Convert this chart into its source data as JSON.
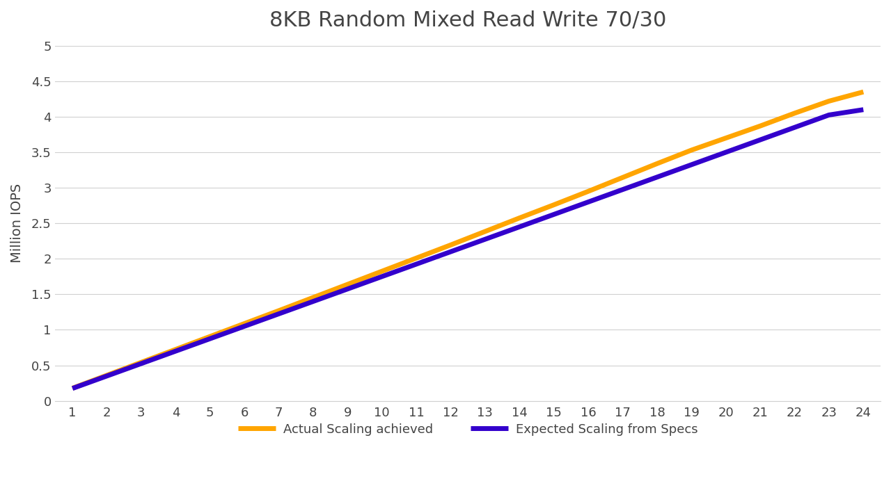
{
  "title": "8KB Random Mixed Read Write 70/30",
  "xlabel": "",
  "ylabel": "Million IOPS",
  "x_values": [
    1,
    2,
    3,
    4,
    5,
    6,
    7,
    8,
    9,
    10,
    11,
    12,
    13,
    14,
    15,
    16,
    17,
    18,
    19,
    20,
    21,
    22,
    23,
    24
  ],
  "expected_values": [
    0.175,
    0.35,
    0.525,
    0.7,
    0.875,
    1.05,
    1.225,
    1.4,
    1.575,
    1.75,
    1.925,
    2.1,
    2.275,
    2.45,
    2.625,
    2.8,
    2.975,
    3.15,
    3.325,
    3.5,
    3.675,
    3.85,
    4.025,
    4.1
  ],
  "actual_values": [
    0.178,
    0.36,
    0.542,
    0.724,
    0.906,
    1.088,
    1.27,
    1.455,
    1.64,
    1.825,
    2.01,
    2.195,
    2.385,
    2.575,
    2.76,
    2.95,
    3.145,
    3.34,
    3.53,
    3.7,
    3.87,
    4.05,
    4.22,
    4.35
  ],
  "expected_color": "#3300cc",
  "actual_color": "#FFA500",
  "expected_label": "Expected Scaling from Specs",
  "actual_label": "Actual Scaling achieved",
  "title_fontsize": 22,
  "label_fontsize": 14,
  "tick_fontsize": 13,
  "legend_fontsize": 13,
  "line_width": 5,
  "ylim": [
    0,
    5.0
  ],
  "yticks": [
    0,
    0.5,
    1.0,
    1.5,
    2.0,
    2.5,
    3.0,
    3.5,
    4.0,
    4.5,
    5.0
  ],
  "background_color": "#ffffff",
  "grid_color": "#d0d0d0",
  "title_color": "#444444",
  "tick_color": "#444444"
}
